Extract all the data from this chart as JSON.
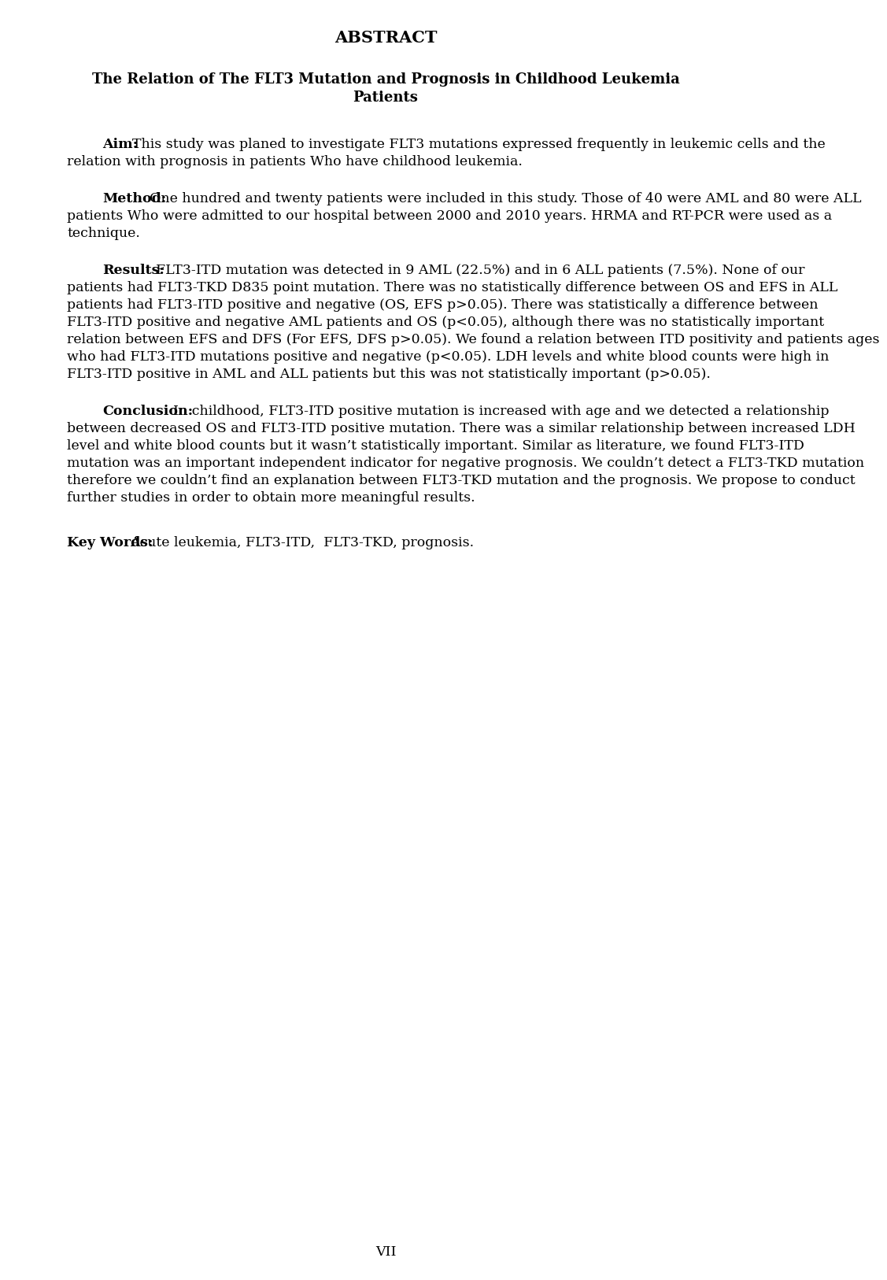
{
  "background_color": "#ffffff",
  "page_number": "VII",
  "header": "ABSTRACT",
  "title_line1": "The Relation of The FLT3 Mutation and Prognosis in Childhood Leukemia",
  "title_line2": "Patients",
  "sections": [
    {
      "label": "Aim:",
      "label_bold": true,
      "indent": true,
      "text": "This study was planed to investigate FLT3 mutations expressed frequently in leukemic cells and the relation with prognosis in patients Who have childhood leukemia."
    },
    {
      "label": "Method:",
      "label_bold": true,
      "indent": true,
      "text": "One hundred and twenty patients were included in this study. Those of 40 were AML and 80 were ALL patients Who were admitted to our hospital between 2000 and 2010 years. HRMA and RT-PCR were used as a technique."
    },
    {
      "label": "Results:",
      "label_bold": true,
      "indent": true,
      "text": "FLT3-ITD mutation was detected in 9 AML (22.5%) and in 6 ALL patients  (7.5%).  None of our patients had FLT3-TKD D835 point mutation. There was no statistically difference between OS and EFS in ALL patients had FLT3-ITD positive and negative (OS, EFS p>0.05). There was statistically a difference between FLT3-ITD positive and negative AML patients and OS (p<0.05), although there was no statistically important relation between EFS and DFS (For EFS, DFS p>0.05).  We found a relation between ITD positivity and patients ages who had FLT3-ITD mutations positive and negative (p<0.05).  LDH levels and white blood counts were high in FLT3-ITD positive in AML and ALL patients but this was not statistically important (p>0.05)."
    },
    {
      "label": "Conclusion:",
      "label_bold": true,
      "indent": true,
      "text": "In childhood, FLT3-ITD positive mutation is increased with age and we detected a relationship between decreased OS and FLT3-ITD positive mutation. There was a similar relationship between increased LDH level and white blood counts but it wasn’t statistically important. Similar as literature, we found FLT3-ITD mutation was an important independent indicator for negative prognosis. We couldn’t detect a FLT3-TKD mutation therefore we couldn’t find an explanation between FLT3-TKD mutation and the prognosis. We propose to conduct further studies in order to obtain more meaningful results."
    }
  ],
  "keywords_label": "Key Words:",
  "keywords_text": "Acute leukemia, FLT3-ITD,  FLT3-TKD, prognosis."
}
